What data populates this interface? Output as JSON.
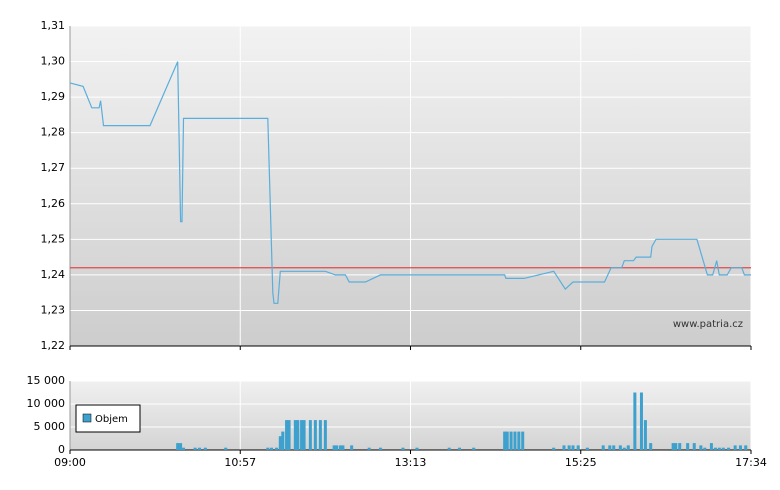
{
  "chart_data": [
    {
      "type": "line",
      "x": [
        540,
        549,
        555,
        560,
        561,
        563,
        595,
        614,
        616,
        617,
        618,
        679,
        683,
        684,
        687,
        689,
        691,
        694,
        725,
        733,
        741,
        744,
        757,
        769,
        866,
        867,
        881,
        904,
        913,
        919,
        943,
        948,
        956,
        958,
        965,
        967,
        978,
        979,
        982,
        1013,
        1021,
        1025,
        1028,
        1030,
        1036,
        1039,
        1047,
        1049,
        1054
      ],
      "values": [
        1.294,
        1.293,
        1.287,
        1.287,
        1.289,
        1.282,
        1.282,
        1.3,
        1.255,
        1.255,
        1.284,
        1.284,
        1.235,
        1.232,
        1.232,
        1.241,
        1.241,
        1.241,
        1.241,
        1.24,
        1.24,
        1.238,
        1.238,
        1.24,
        1.24,
        1.239,
        1.239,
        1.241,
        1.236,
        1.238,
        1.238,
        1.242,
        1.242,
        1.244,
        1.244,
        1.245,
        1.245,
        1.248,
        1.25,
        1.25,
        1.24,
        1.24,
        1.244,
        1.24,
        1.24,
        1.242,
        1.242,
        1.24,
        1.24
      ],
      "color": "#5aaedc",
      "reference_line": 1.242,
      "reference_color": "#e04848",
      "ylim": [
        1.22,
        1.31
      ],
      "yticks": [
        {
          "value": 1.22,
          "label": "1,22"
        },
        {
          "value": 1.23,
          "label": "1,23"
        },
        {
          "value": 1.24,
          "label": "1,24"
        },
        {
          "value": 1.25,
          "label": "1,25"
        },
        {
          "value": 1.26,
          "label": "1,26"
        },
        {
          "value": 1.27,
          "label": "1,27"
        },
        {
          "value": 1.28,
          "label": "1,28"
        },
        {
          "value": 1.29,
          "label": "1,29"
        },
        {
          "value": 1.3,
          "label": "1,30"
        },
        {
          "value": 1.31,
          "label": "1,31"
        }
      ],
      "watermark": "www.patria.cz",
      "grid": true
    },
    {
      "type": "bar",
      "x": [
        614,
        616,
        618,
        626,
        629,
        633,
        647,
        679,
        682,
        686,
        689,
        691,
        694,
        696,
        701,
        703,
        706,
        708,
        713,
        717,
        721,
        725,
        732,
        734,
        737,
        739,
        746,
        760,
        769,
        787,
        798,
        823,
        831,
        842,
        866,
        868,
        871,
        874,
        877,
        880,
        904,
        912,
        916,
        919,
        923,
        930,
        942,
        947,
        950,
        955,
        958,
        961,
        966,
        971,
        974,
        978,
        995,
        997,
        1000,
        1006,
        1011,
        1016,
        1019,
        1024,
        1027,
        1030,
        1033,
        1037,
        1042,
        1046,
        1050
      ],
      "series": [
        {
          "name": "Objem",
          "color": "#3ea0cc",
          "values": [
            1500,
            1500,
            500,
            500,
            500,
            500,
            500,
            500,
            500,
            500,
            3000,
            4000,
            6500,
            6500,
            6500,
            6500,
            6500,
            6500,
            6500,
            6500,
            6500,
            6500,
            1000,
            1000,
            1000,
            1000,
            1000,
            500,
            500,
            500,
            500,
            500,
            500,
            500,
            4000,
            4000,
            4000,
            4000,
            4000,
            4000,
            500,
            1000,
            1000,
            1000,
            1000,
            500,
            1000,
            1000,
            1000,
            1000,
            500,
            1000,
            12500,
            12500,
            6500,
            1500,
            1500,
            1500,
            1500,
            1500,
            1500,
            1000,
            500,
            1500,
            500,
            500,
            500,
            500,
            1000,
            1000,
            1000
          ]
        }
      ],
      "ylim": [
        0,
        15000
      ],
      "yticks": [
        0,
        {
          "value": 5000,
          "label": "5 000"
        },
        {
          "value": 10000,
          "label": "10 000"
        },
        {
          "value": 15000,
          "label": "15 000"
        }
      ],
      "xlim": [
        540,
        1054
      ],
      "xticks": [
        {
          "value": 540,
          "label": "09:00"
        },
        {
          "value": 657,
          "label": "10:57"
        },
        {
          "value": 793,
          "label": "13:13"
        },
        {
          "value": 925,
          "label": "15:25"
        },
        {
          "value": 1054,
          "label": "17:34"
        }
      ],
      "legend": "bottom-left",
      "grid": true
    }
  ]
}
